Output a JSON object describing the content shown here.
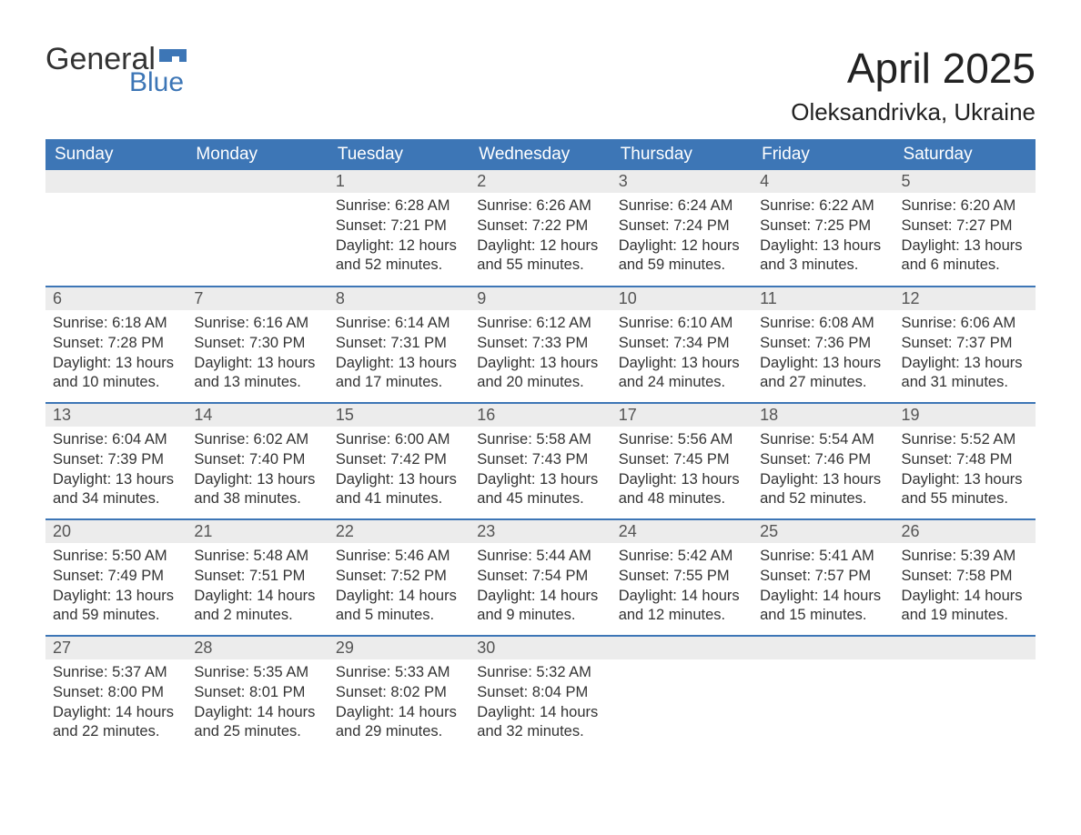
{
  "brand": {
    "word1": "General",
    "word2": "Blue",
    "flag_color": "#3d76b6",
    "text_color": "#333333"
  },
  "title": "April 2025",
  "location": "Oleksandrivka, Ukraine",
  "colors": {
    "header_bg": "#3d76b6",
    "header_text": "#ffffff",
    "row_divider": "#3d76b6",
    "daynum_bg": "#ececec",
    "daynum_text": "#555555",
    "body_text": "#333333",
    "page_bg": "#ffffff"
  },
  "weekdays": [
    "Sunday",
    "Monday",
    "Tuesday",
    "Wednesday",
    "Thursday",
    "Friday",
    "Saturday"
  ],
  "weeks": [
    [
      {
        "blank": true
      },
      {
        "blank": true
      },
      {
        "day": "1",
        "sunrise": "Sunrise: 6:28 AM",
        "sunset": "Sunset: 7:21 PM",
        "daylight1": "Daylight: 12 hours",
        "daylight2": "and 52 minutes."
      },
      {
        "day": "2",
        "sunrise": "Sunrise: 6:26 AM",
        "sunset": "Sunset: 7:22 PM",
        "daylight1": "Daylight: 12 hours",
        "daylight2": "and 55 minutes."
      },
      {
        "day": "3",
        "sunrise": "Sunrise: 6:24 AM",
        "sunset": "Sunset: 7:24 PM",
        "daylight1": "Daylight: 12 hours",
        "daylight2": "and 59 minutes."
      },
      {
        "day": "4",
        "sunrise": "Sunrise: 6:22 AM",
        "sunset": "Sunset: 7:25 PM",
        "daylight1": "Daylight: 13 hours",
        "daylight2": "and 3 minutes."
      },
      {
        "day": "5",
        "sunrise": "Sunrise: 6:20 AM",
        "sunset": "Sunset: 7:27 PM",
        "daylight1": "Daylight: 13 hours",
        "daylight2": "and 6 minutes."
      }
    ],
    [
      {
        "day": "6",
        "sunrise": "Sunrise: 6:18 AM",
        "sunset": "Sunset: 7:28 PM",
        "daylight1": "Daylight: 13 hours",
        "daylight2": "and 10 minutes."
      },
      {
        "day": "7",
        "sunrise": "Sunrise: 6:16 AM",
        "sunset": "Sunset: 7:30 PM",
        "daylight1": "Daylight: 13 hours",
        "daylight2": "and 13 minutes."
      },
      {
        "day": "8",
        "sunrise": "Sunrise: 6:14 AM",
        "sunset": "Sunset: 7:31 PM",
        "daylight1": "Daylight: 13 hours",
        "daylight2": "and 17 minutes."
      },
      {
        "day": "9",
        "sunrise": "Sunrise: 6:12 AM",
        "sunset": "Sunset: 7:33 PM",
        "daylight1": "Daylight: 13 hours",
        "daylight2": "and 20 minutes."
      },
      {
        "day": "10",
        "sunrise": "Sunrise: 6:10 AM",
        "sunset": "Sunset: 7:34 PM",
        "daylight1": "Daylight: 13 hours",
        "daylight2": "and 24 minutes."
      },
      {
        "day": "11",
        "sunrise": "Sunrise: 6:08 AM",
        "sunset": "Sunset: 7:36 PM",
        "daylight1": "Daylight: 13 hours",
        "daylight2": "and 27 minutes."
      },
      {
        "day": "12",
        "sunrise": "Sunrise: 6:06 AM",
        "sunset": "Sunset: 7:37 PM",
        "daylight1": "Daylight: 13 hours",
        "daylight2": "and 31 minutes."
      }
    ],
    [
      {
        "day": "13",
        "sunrise": "Sunrise: 6:04 AM",
        "sunset": "Sunset: 7:39 PM",
        "daylight1": "Daylight: 13 hours",
        "daylight2": "and 34 minutes."
      },
      {
        "day": "14",
        "sunrise": "Sunrise: 6:02 AM",
        "sunset": "Sunset: 7:40 PM",
        "daylight1": "Daylight: 13 hours",
        "daylight2": "and 38 minutes."
      },
      {
        "day": "15",
        "sunrise": "Sunrise: 6:00 AM",
        "sunset": "Sunset: 7:42 PM",
        "daylight1": "Daylight: 13 hours",
        "daylight2": "and 41 minutes."
      },
      {
        "day": "16",
        "sunrise": "Sunrise: 5:58 AM",
        "sunset": "Sunset: 7:43 PM",
        "daylight1": "Daylight: 13 hours",
        "daylight2": "and 45 minutes."
      },
      {
        "day": "17",
        "sunrise": "Sunrise: 5:56 AM",
        "sunset": "Sunset: 7:45 PM",
        "daylight1": "Daylight: 13 hours",
        "daylight2": "and 48 minutes."
      },
      {
        "day": "18",
        "sunrise": "Sunrise: 5:54 AM",
        "sunset": "Sunset: 7:46 PM",
        "daylight1": "Daylight: 13 hours",
        "daylight2": "and 52 minutes."
      },
      {
        "day": "19",
        "sunrise": "Sunrise: 5:52 AM",
        "sunset": "Sunset: 7:48 PM",
        "daylight1": "Daylight: 13 hours",
        "daylight2": "and 55 minutes."
      }
    ],
    [
      {
        "day": "20",
        "sunrise": "Sunrise: 5:50 AM",
        "sunset": "Sunset: 7:49 PM",
        "daylight1": "Daylight: 13 hours",
        "daylight2": "and 59 minutes."
      },
      {
        "day": "21",
        "sunrise": "Sunrise: 5:48 AM",
        "sunset": "Sunset: 7:51 PM",
        "daylight1": "Daylight: 14 hours",
        "daylight2": "and 2 minutes."
      },
      {
        "day": "22",
        "sunrise": "Sunrise: 5:46 AM",
        "sunset": "Sunset: 7:52 PM",
        "daylight1": "Daylight: 14 hours",
        "daylight2": "and 5 minutes."
      },
      {
        "day": "23",
        "sunrise": "Sunrise: 5:44 AM",
        "sunset": "Sunset: 7:54 PM",
        "daylight1": "Daylight: 14 hours",
        "daylight2": "and 9 minutes."
      },
      {
        "day": "24",
        "sunrise": "Sunrise: 5:42 AM",
        "sunset": "Sunset: 7:55 PM",
        "daylight1": "Daylight: 14 hours",
        "daylight2": "and 12 minutes."
      },
      {
        "day": "25",
        "sunrise": "Sunrise: 5:41 AM",
        "sunset": "Sunset: 7:57 PM",
        "daylight1": "Daylight: 14 hours",
        "daylight2": "and 15 minutes."
      },
      {
        "day": "26",
        "sunrise": "Sunrise: 5:39 AM",
        "sunset": "Sunset: 7:58 PM",
        "daylight1": "Daylight: 14 hours",
        "daylight2": "and 19 minutes."
      }
    ],
    [
      {
        "day": "27",
        "sunrise": "Sunrise: 5:37 AM",
        "sunset": "Sunset: 8:00 PM",
        "daylight1": "Daylight: 14 hours",
        "daylight2": "and 22 minutes."
      },
      {
        "day": "28",
        "sunrise": "Sunrise: 5:35 AM",
        "sunset": "Sunset: 8:01 PM",
        "daylight1": "Daylight: 14 hours",
        "daylight2": "and 25 minutes."
      },
      {
        "day": "29",
        "sunrise": "Sunrise: 5:33 AM",
        "sunset": "Sunset: 8:02 PM",
        "daylight1": "Daylight: 14 hours",
        "daylight2": "and 29 minutes."
      },
      {
        "day": "30",
        "sunrise": "Sunrise: 5:32 AM",
        "sunset": "Sunset: 8:04 PM",
        "daylight1": "Daylight: 14 hours",
        "daylight2": "and 32 minutes."
      },
      {
        "blank": true
      },
      {
        "blank": true
      },
      {
        "blank": true
      }
    ]
  ]
}
